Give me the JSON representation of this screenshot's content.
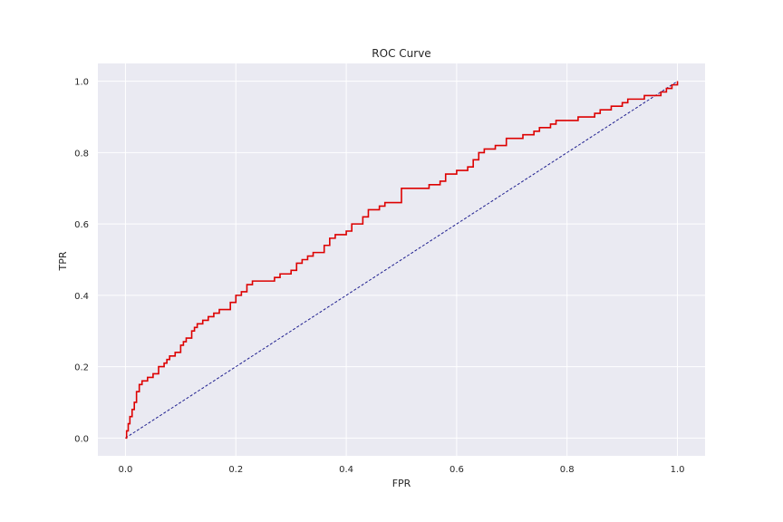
{
  "chart_data": {
    "type": "line",
    "title": "ROC Curve",
    "xlabel": "FPR",
    "ylabel": "TPR",
    "xlim": [
      -0.05,
      1.05
    ],
    "ylim": [
      -0.05,
      1.05
    ],
    "grid": true,
    "x_ticks": [
      "0.0",
      "0.2",
      "0.4",
      "0.6",
      "0.8",
      "1.0"
    ],
    "y_ticks": [
      "0.0",
      "0.2",
      "0.4",
      "0.6",
      "0.8",
      "1.0"
    ],
    "colors": {
      "background": "#eaeaf2",
      "grid": "#ffffff",
      "roc": "#dd0000",
      "baseline": "#1f1f8f"
    },
    "series": [
      {
        "style": "step",
        "x": [
          0.0,
          0.002,
          0.005,
          0.008,
          0.012,
          0.016,
          0.02,
          0.025,
          0.03,
          0.04,
          0.05,
          0.06,
          0.07,
          0.075,
          0.08,
          0.09,
          0.1,
          0.105,
          0.11,
          0.12,
          0.125,
          0.13,
          0.14,
          0.15,
          0.16,
          0.17,
          0.19,
          0.2,
          0.21,
          0.22,
          0.23,
          0.24,
          0.25,
          0.27,
          0.28,
          0.3,
          0.31,
          0.32,
          0.33,
          0.34,
          0.36,
          0.37,
          0.38,
          0.4,
          0.41,
          0.43,
          0.44,
          0.46,
          0.47,
          0.5,
          0.51,
          0.52,
          0.55,
          0.57,
          0.58,
          0.6,
          0.62,
          0.63,
          0.64,
          0.65,
          0.67,
          0.69,
          0.7,
          0.72,
          0.74,
          0.75,
          0.77,
          0.78,
          0.8,
          0.82,
          0.84,
          0.85,
          0.86,
          0.88,
          0.9,
          0.91,
          0.92,
          0.94,
          0.96,
          0.97,
          0.98,
          0.99,
          1.0
        ],
        "y": [
          0.0,
          0.02,
          0.04,
          0.06,
          0.08,
          0.1,
          0.13,
          0.15,
          0.16,
          0.17,
          0.18,
          0.2,
          0.21,
          0.22,
          0.23,
          0.24,
          0.26,
          0.27,
          0.28,
          0.3,
          0.31,
          0.32,
          0.33,
          0.34,
          0.35,
          0.36,
          0.38,
          0.4,
          0.41,
          0.43,
          0.44,
          0.44,
          0.44,
          0.45,
          0.46,
          0.47,
          0.49,
          0.5,
          0.51,
          0.52,
          0.54,
          0.56,
          0.57,
          0.58,
          0.6,
          0.62,
          0.64,
          0.65,
          0.66,
          0.7,
          0.7,
          0.7,
          0.71,
          0.72,
          0.74,
          0.75,
          0.76,
          0.78,
          0.8,
          0.81,
          0.82,
          0.84,
          0.84,
          0.85,
          0.86,
          0.87,
          0.88,
          0.89,
          0.89,
          0.9,
          0.9,
          0.91,
          0.92,
          0.93,
          0.94,
          0.95,
          0.95,
          0.96,
          0.96,
          0.97,
          0.98,
          0.99,
          1.0
        ]
      },
      {
        "style": "dashed",
        "x": [
          0.0,
          1.0
        ],
        "y": [
          0.0,
          1.0
        ]
      }
    ]
  }
}
